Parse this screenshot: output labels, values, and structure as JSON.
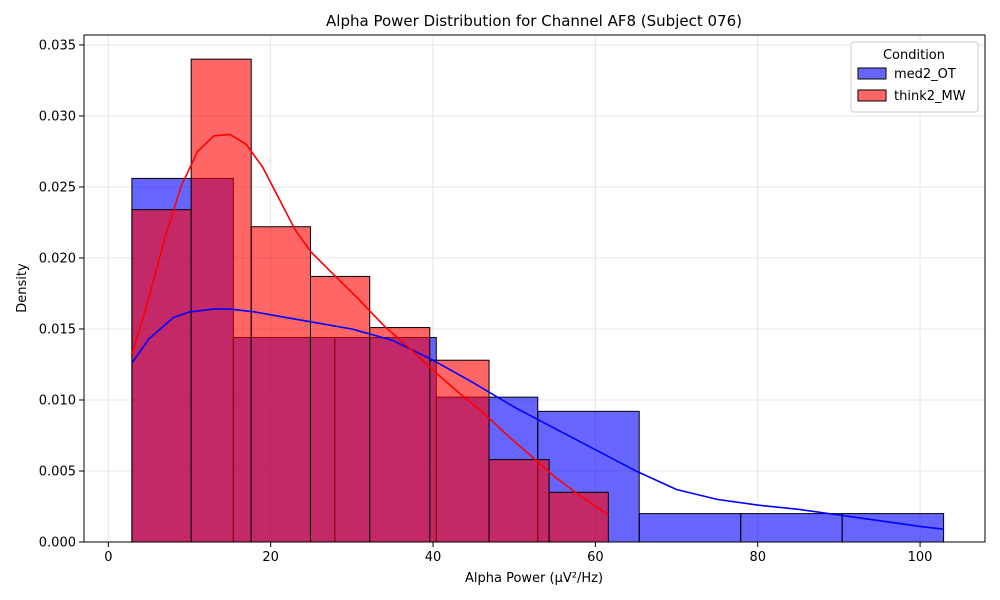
{
  "chart_data": {
    "type": "histogram",
    "title": "Alpha Power Distribution for Channel AF8 (Subject 076)",
    "xlabel": "Alpha Power (μV²/Hz)",
    "ylabel": "Density",
    "xlim": [
      -3,
      108
    ],
    "ylim": [
      0,
      0.0357
    ],
    "xticks": [
      0,
      20,
      40,
      60,
      80,
      100
    ],
    "yticks": [
      0.0,
      0.005,
      0.01,
      0.015,
      0.02,
      0.025,
      0.03,
      0.035
    ],
    "ytick_labels": [
      "0.000",
      "0.005",
      "0.010",
      "0.015",
      "0.020",
      "0.025",
      "0.030",
      "0.035"
    ],
    "grid": true,
    "legend": {
      "title": "Condition",
      "position": "top-right"
    },
    "series": [
      {
        "name": "med2_OT",
        "color": "#0000ff",
        "fill_opacity": 0.6,
        "bin_edges": [
          2.9,
          15.4,
          27.9,
          40.4,
          52.9,
          65.4,
          77.9,
          90.4,
          102.9
        ],
        "values": [
          0.0256,
          0.0144,
          0.0144,
          0.0102,
          0.0092,
          0.002,
          0.002,
          0.002
        ],
        "kde": {
          "x": [
            2.9,
            5,
            8,
            10,
            13,
            15,
            18,
            20,
            25,
            30,
            35,
            40,
            45,
            50,
            55,
            60,
            65,
            70,
            75,
            80,
            85,
            90,
            95,
            100,
            102.9
          ],
          "y": [
            0.0126,
            0.0143,
            0.0158,
            0.0162,
            0.0164,
            0.0164,
            0.0162,
            0.016,
            0.0155,
            0.015,
            0.0142,
            0.0128,
            0.0112,
            0.0095,
            0.008,
            0.0065,
            0.005,
            0.0037,
            0.003,
            0.0026,
            0.0023,
            0.0019,
            0.0015,
            0.0011,
            0.0009
          ]
        }
      },
      {
        "name": "think2_MW",
        "color": "#ff0000",
        "fill_opacity": 0.6,
        "bin_edges": [
          2.9,
          10.2,
          17.6,
          24.9,
          32.2,
          39.6,
          46.9,
          54.3,
          61.6
        ],
        "values": [
          0.0234,
          0.034,
          0.0222,
          0.0187,
          0.0151,
          0.0128,
          0.0058,
          0.0035
        ],
        "kde": {
          "x": [
            2.9,
            5,
            7,
            9,
            11,
            13,
            15,
            17,
            19,
            21,
            23,
            25,
            28,
            31,
            34,
            37,
            40,
            43,
            46,
            49,
            52,
            55,
            58,
            61.6
          ],
          "y": [
            0.0132,
            0.0172,
            0.0215,
            0.0251,
            0.0275,
            0.0286,
            0.0287,
            0.028,
            0.0264,
            0.0242,
            0.022,
            0.0204,
            0.0187,
            0.017,
            0.0152,
            0.0137,
            0.0121,
            0.0106,
            0.0092,
            0.0076,
            0.0061,
            0.0046,
            0.0033,
            0.0019
          ]
        }
      }
    ]
  }
}
